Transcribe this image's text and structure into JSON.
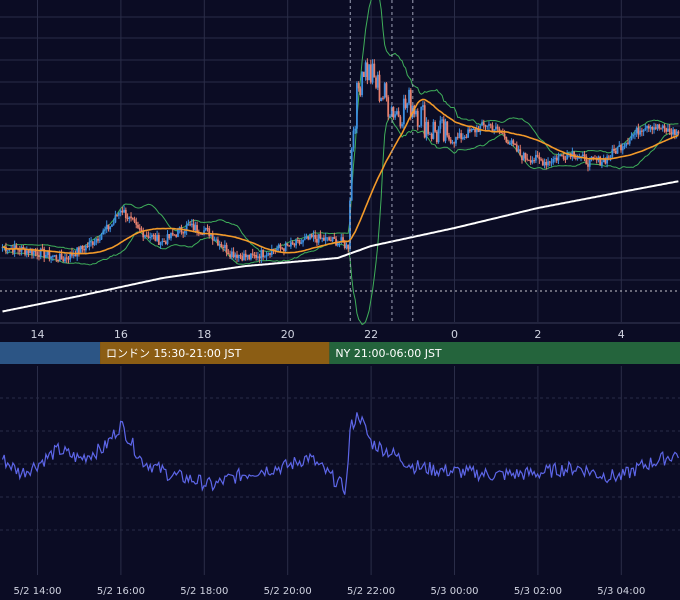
{
  "sessions": [
    {
      "label": "",
      "color": "#2c5585"
    },
    {
      "label": "ロンドン 15:30-21:00 JST",
      "color": "#8b5d14"
    },
    {
      "label": "NY 21:00-06:00 JST",
      "color": "#24643c"
    }
  ],
  "colors": {
    "background": "#0b0c24",
    "grid": "#2a2d48",
    "candle_up": "#3d8fe0",
    "candle_down": "#e8806e",
    "bollinger": "#3fae5a",
    "ma_short": "#f39a2a",
    "ma_long": "#ffffff",
    "oscillator": "#5d66e8"
  },
  "chart_data": [
    {
      "type": "candlestick",
      "x_axis": {
        "tick_labels": [
          "14",
          "16",
          "18",
          "20",
          "22",
          "0",
          "2",
          "4"
        ]
      },
      "grid": true,
      "legend": "none",
      "overlays": [
        "bollinger-bands",
        "moving-average-short",
        "moving-average-long",
        "session-markers"
      ],
      "events": [
        "5/2 21:30",
        "5/2 22:30",
        "5/2 23:00"
      ],
      "series_segments": [
        {
          "from": "5/2 13:10",
          "to": "5/2 16:00",
          "trend": "flat then rise"
        },
        {
          "from": "5/2 16:00",
          "to": "5/2 21:25",
          "trend": "slow fall then recovery"
        },
        {
          "from": "5/2 21:30",
          "to": "5/2 21:45",
          "trend": "sharp spike up"
        },
        {
          "from": "5/2 21:45",
          "to": "5/3 05:20",
          "trend": "drift lower then rise"
        }
      ]
    },
    {
      "type": "line",
      "x_axis": {
        "tick_labels": [
          "5/2 14:00",
          "5/2 16:00",
          "5/2 18:00",
          "5/2 20:00",
          "5/2 22:00",
          "5/3 00:00",
          "5/3 02:00",
          "5/3 04:00"
        ]
      },
      "grid": true,
      "legend": "none"
    }
  ]
}
